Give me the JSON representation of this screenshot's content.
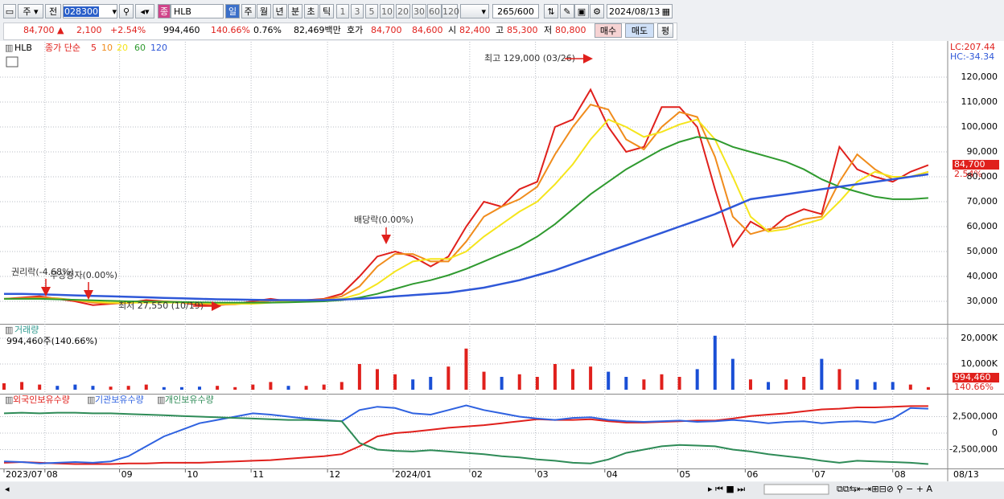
{
  "toolbar": {
    "market": "주",
    "scope": "전",
    "code": "028300",
    "name_badge": "종",
    "name": "HLB",
    "periods": [
      "일",
      "주",
      "월",
      "년",
      "분",
      "초",
      "틱"
    ],
    "intervals": [
      "1",
      "3",
      "5",
      "10",
      "20",
      "30",
      "60",
      "120"
    ],
    "count": "265",
    "count_max": "/600",
    "date": "2024/08/13"
  },
  "quote": {
    "price": "84,700 ▲",
    "change": "2,100",
    "change_rate": "+2.54%",
    "volume": "994,460",
    "volume_rate": "140.66%",
    "turnover": "0.76%",
    "amount": "82,469백만",
    "ask_label": "호가",
    "ask": "84,700",
    "bid": "84,600",
    "open_label": "시",
    "open": "82,400",
    "high_label": "고",
    "high": "85,300",
    "low_label": "저",
    "low": "80,800",
    "buy": "매수",
    "sell": "매도",
    "eval": "평"
  },
  "price_chart": {
    "type": "line",
    "symbol": "HLB",
    "legend_title": "종가 단순",
    "grid": true,
    "series": [
      {
        "name": "5",
        "color": "#e0201c",
        "values": [
          31000,
          31500,
          32000,
          31000,
          30000,
          28500,
          29000,
          29500,
          30500,
          30000,
          29500,
          28500,
          28500,
          29000,
          30000,
          31000,
          30000,
          30500,
          31000,
          33000,
          40000,
          48000,
          50000,
          48000,
          44000,
          48000,
          60000,
          70000,
          68000,
          75000,
          78000,
          100000,
          103000,
          115000,
          100000,
          90000,
          92000,
          108000,
          108000,
          100000,
          75000,
          52000,
          62000,
          58000,
          64000,
          67000,
          65000,
          92000,
          83000,
          80000,
          78000,
          82000,
          84700
        ]
      },
      {
        "name": "10",
        "color": "#f08c1c",
        "values": [
          31000,
          31200,
          31500,
          31200,
          30500,
          29500,
          29200,
          29300,
          29800,
          30000,
          29700,
          29000,
          28700,
          28800,
          29500,
          30300,
          30400,
          30400,
          30800,
          32000,
          36000,
          44000,
          49000,
          49000,
          46000,
          46000,
          54000,
          64000,
          68000,
          71000,
          76000,
          89000,
          100000,
          109000,
          107000,
          95000,
          91000,
          100000,
          106000,
          104000,
          88000,
          64000,
          57000,
          59000,
          60000,
          63000,
          64000,
          78000,
          89000,
          83000,
          79000,
          80000,
          82000
        ]
      },
      {
        "name": "20",
        "color": "#f5e51c",
        "values": [
          31000,
          31000,
          31000,
          31000,
          30500,
          30000,
          29500,
          29500,
          29500,
          29500,
          29500,
          29500,
          29000,
          29000,
          29000,
          29500,
          30000,
          30000,
          30500,
          31000,
          33000,
          37000,
          42000,
          46000,
          47000,
          47000,
          50000,
          56000,
          61000,
          66000,
          70000,
          77000,
          85000,
          95000,
          103000,
          100000,
          96000,
          98000,
          101000,
          103000,
          95000,
          80000,
          64000,
          58000,
          59000,
          61000,
          63000,
          70000,
          78000,
          82000,
          80000,
          80000,
          82000
        ]
      },
      {
        "name": "60",
        "color": "#2f9a2f",
        "values": [
          31000,
          31000,
          31000,
          30800,
          30600,
          30400,
          30200,
          30000,
          29900,
          29800,
          29700,
          29600,
          29500,
          29500,
          29500,
          29500,
          29600,
          29800,
          30000,
          30500,
          31500,
          33000,
          35000,
          37000,
          38500,
          40500,
          43000,
          46000,
          49000,
          52000,
          56000,
          61000,
          67000,
          73000,
          78000,
          83000,
          87000,
          91000,
          94000,
          96000,
          95000,
          92000,
          90000,
          88000,
          86000,
          83000,
          79000,
          76000,
          74000,
          72000,
          71000,
          71000,
          71500
        ]
      },
      {
        "name": "120",
        "color": "#2f58d8",
        "values": [
          33000,
          33000,
          32800,
          32600,
          32400,
          32200,
          32000,
          31800,
          31600,
          31400,
          31200,
          31000,
          30800,
          30700,
          30600,
          30500,
          30500,
          30500,
          30500,
          30700,
          31000,
          31500,
          32000,
          32500,
          33000,
          33500,
          34500,
          35500,
          37000,
          38500,
          40500,
          42500,
          45000,
          47500,
          50000,
          52500,
          55000,
          57500,
          60000,
          62500,
          65000,
          68000,
          71000,
          72000,
          73000,
          74000,
          75000,
          76000,
          77000,
          78000,
          79000,
          80000,
          81000
        ]
      }
    ],
    "ylim": [
      20970,
      134200
    ],
    "yticks": [
      {
        "value": 30000,
        "label": "30,000"
      },
      {
        "value": 40000,
        "label": "40,000"
      },
      {
        "value": 50000,
        "label": "50,000"
      },
      {
        "value": 60000,
        "label": "60,000"
      },
      {
        "value": 70000,
        "label": "70,000"
      },
      {
        "value": 80000,
        "label": "80,000"
      },
      {
        "value": 90000,
        "label": "90,000"
      },
      {
        "value": 100000,
        "label": "100,000"
      },
      {
        "value": 110000,
        "label": "110,000"
      },
      {
        "value": 120000,
        "label": "120,000"
      }
    ],
    "xlim": [
      0,
      53
    ],
    "xticks": [
      {
        "value": 0,
        "label": "2023/07"
      },
      {
        "value": 2.3,
        "label": "08"
      },
      {
        "value": 6.5,
        "label": "09"
      },
      {
        "value": 10.2,
        "label": "10"
      },
      {
        "value": 13.9,
        "label": "11"
      },
      {
        "value": 18.2,
        "label": "12"
      },
      {
        "value": 21.9,
        "label": "2024/01"
      },
      {
        "value": 26.2,
        "label": "02"
      },
      {
        "value": 29.9,
        "label": "03"
      },
      {
        "value": 33.8,
        "label": "04"
      },
      {
        "value": 37.9,
        "label": "05"
      },
      {
        "value": 41.7,
        "label": "06"
      },
      {
        "value": 45.5,
        "label": "07"
      },
      {
        "value": 50,
        "label": "08"
      }
    ],
    "last_date": "08/13",
    "lc": "LC:207.44",
    "hc": "HC:-34.34",
    "last_price": "84,700",
    "last_rate": "2.54%",
    "annotations": [
      "최고 129,000 (03/26)",
      "최저 27,550 (10/19)",
      "배당락(0.00%)",
      "권리락(-4.68%)",
      "무상증자(0.00%)"
    ]
  },
  "volume_chart": {
    "type": "bar",
    "title": "거래량",
    "summary": "994,460주(140.66%)",
    "up_color": "#e0201c",
    "down_color": "#1a4fd6",
    "values": [
      2500,
      3000,
      2000,
      1500,
      2000,
      1500,
      1200,
      1500,
      2000,
      1000,
      1000,
      1200,
      1500,
      1000,
      2000,
      3000,
      1500,
      1500,
      2000,
      3000,
      10000,
      8000,
      6000,
      4000,
      5000,
      9000,
      16000,
      7000,
      5000,
      6000,
      5000,
      10000,
      8000,
      9000,
      7000,
      5000,
      4000,
      6000,
      5000,
      8000,
      21000,
      12000,
      4000,
      3000,
      4000,
      5000,
      12000,
      8000,
      4000,
      3000,
      3000,
      2000,
      994.46
    ],
    "ylim": [
      0,
      25000
    ],
    "yticks": [
      {
        "value": 10000,
        "label": "10,000K"
      },
      {
        "value": 20000,
        "label": "20,000K"
      }
    ],
    "last_volume": "994,460",
    "last_rate": "140.66%"
  },
  "holding_chart": {
    "type": "line",
    "series": [
      {
        "name": "외국인보유수량",
        "color": "#e0201c",
        "values": [
          -4500000,
          -4400000,
          -4500000,
          -4600000,
          -4700000,
          -4700000,
          -4700000,
          -4600000,
          -4600000,
          -4500000,
          -4500000,
          -4500000,
          -4400000,
          -4300000,
          -4200000,
          -4100000,
          -3900000,
          -3700000,
          -3500000,
          -3200000,
          -2000000,
          -500000,
          0,
          200000,
          500000,
          800000,
          1000000,
          1200000,
          1500000,
          1800000,
          2100000,
          2000000,
          2000000,
          2100000,
          1800000,
          1600000,
          1600000,
          1700000,
          1800000,
          1900000,
          1900000,
          2200000,
          2600000,
          2800000,
          3000000,
          3300000,
          3600000,
          3700000,
          3900000,
          3900000,
          4000000,
          4100000,
          4100000
        ]
      },
      {
        "name": "기관보유수량",
        "color": "#2f62e0",
        "values": [
          -4300000,
          -4400000,
          -4600000,
          -4500000,
          -4400000,
          -4500000,
          -4300000,
          -3500000,
          -2000000,
          -500000,
          500000,
          1500000,
          2000000,
          2500000,
          3000000,
          2800000,
          2500000,
          2200000,
          2000000,
          1800000,
          3500000,
          4000000,
          3800000,
          3000000,
          2800000,
          3500000,
          4200000,
          3500000,
          3000000,
          2500000,
          2200000,
          2000000,
          2300000,
          2400000,
          2000000,
          1800000,
          1700000,
          1800000,
          1900000,
          1700000,
          1800000,
          2000000,
          1800000,
          1500000,
          1700000,
          1800000,
          1500000,
          1700000,
          1800000,
          1600000,
          2200000,
          3800000,
          3700000
        ]
      },
      {
        "name": "개인보유수량",
        "color": "#2e8b57",
        "values": [
          3000000,
          3100000,
          3000000,
          3100000,
          3100000,
          3000000,
          3000000,
          2900000,
          2800000,
          2700000,
          2600000,
          2500000,
          2400000,
          2300000,
          2200000,
          2100000,
          2000000,
          2000000,
          1900000,
          1800000,
          -1500000,
          -2500000,
          -2700000,
          -2800000,
          -2600000,
          -2800000,
          -3000000,
          -3200000,
          -3500000,
          -3700000,
          -4000000,
          -4200000,
          -4500000,
          -4600000,
          -4000000,
          -3000000,
          -2500000,
          -2000000,
          -1800000,
          -1900000,
          -2000000,
          -2500000,
          -2800000,
          -3200000,
          -3500000,
          -3800000,
          -4200000,
          -4500000,
          -4200000,
          -4300000,
          -4400000,
          -4500000,
          -4700000
        ]
      }
    ],
    "ylim": [
      -5250000,
      5730000
    ],
    "yticks": [
      {
        "value": 2500000,
        "label": "2,500,000"
      },
      0,
      {
        "value": -2500000,
        "label": "-2,500,000"
      }
    ]
  }
}
